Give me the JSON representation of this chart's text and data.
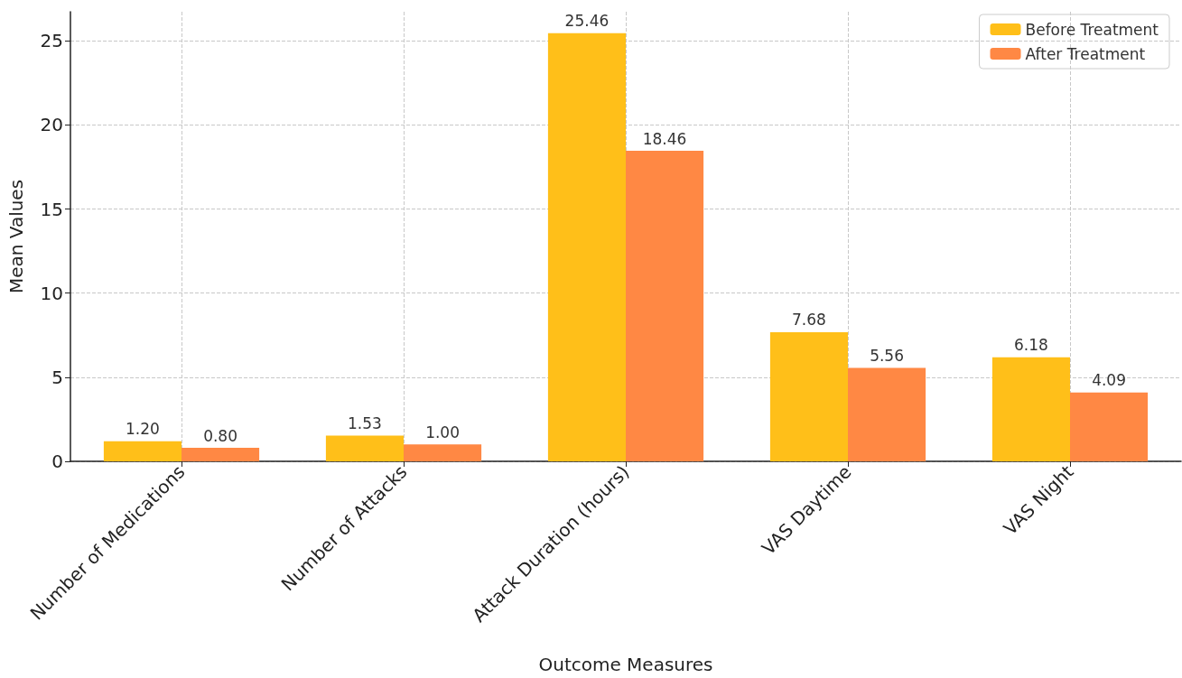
{
  "chart_data": {
    "type": "bar",
    "xlabel": "Outcome Measures",
    "ylabel": "Mean Values",
    "categories": [
      "Number of Medications",
      "Number of Attacks",
      "Attack Duration (hours)",
      "VAS Daytime",
      "VAS Night"
    ],
    "series": [
      {
        "name": "Before Treatment",
        "color": "#ffbf19",
        "values": [
          1.2,
          1.53,
          25.46,
          7.68,
          6.18
        ],
        "value_labels": [
          "1.20",
          "1.53",
          "25.46",
          "7.68",
          "6.18"
        ]
      },
      {
        "name": "After Treatment",
        "color": "#ff8844",
        "values": [
          0.8,
          1.0,
          18.46,
          5.56,
          4.09
        ],
        "value_labels": [
          "0.80",
          "1.00",
          "18.46",
          "5.56",
          "4.09"
        ]
      }
    ],
    "ylim": [
      0,
      26.73
    ],
    "yticks": [
      0,
      5,
      10,
      15,
      20,
      25
    ],
    "grid": true,
    "legend": "top right"
  }
}
